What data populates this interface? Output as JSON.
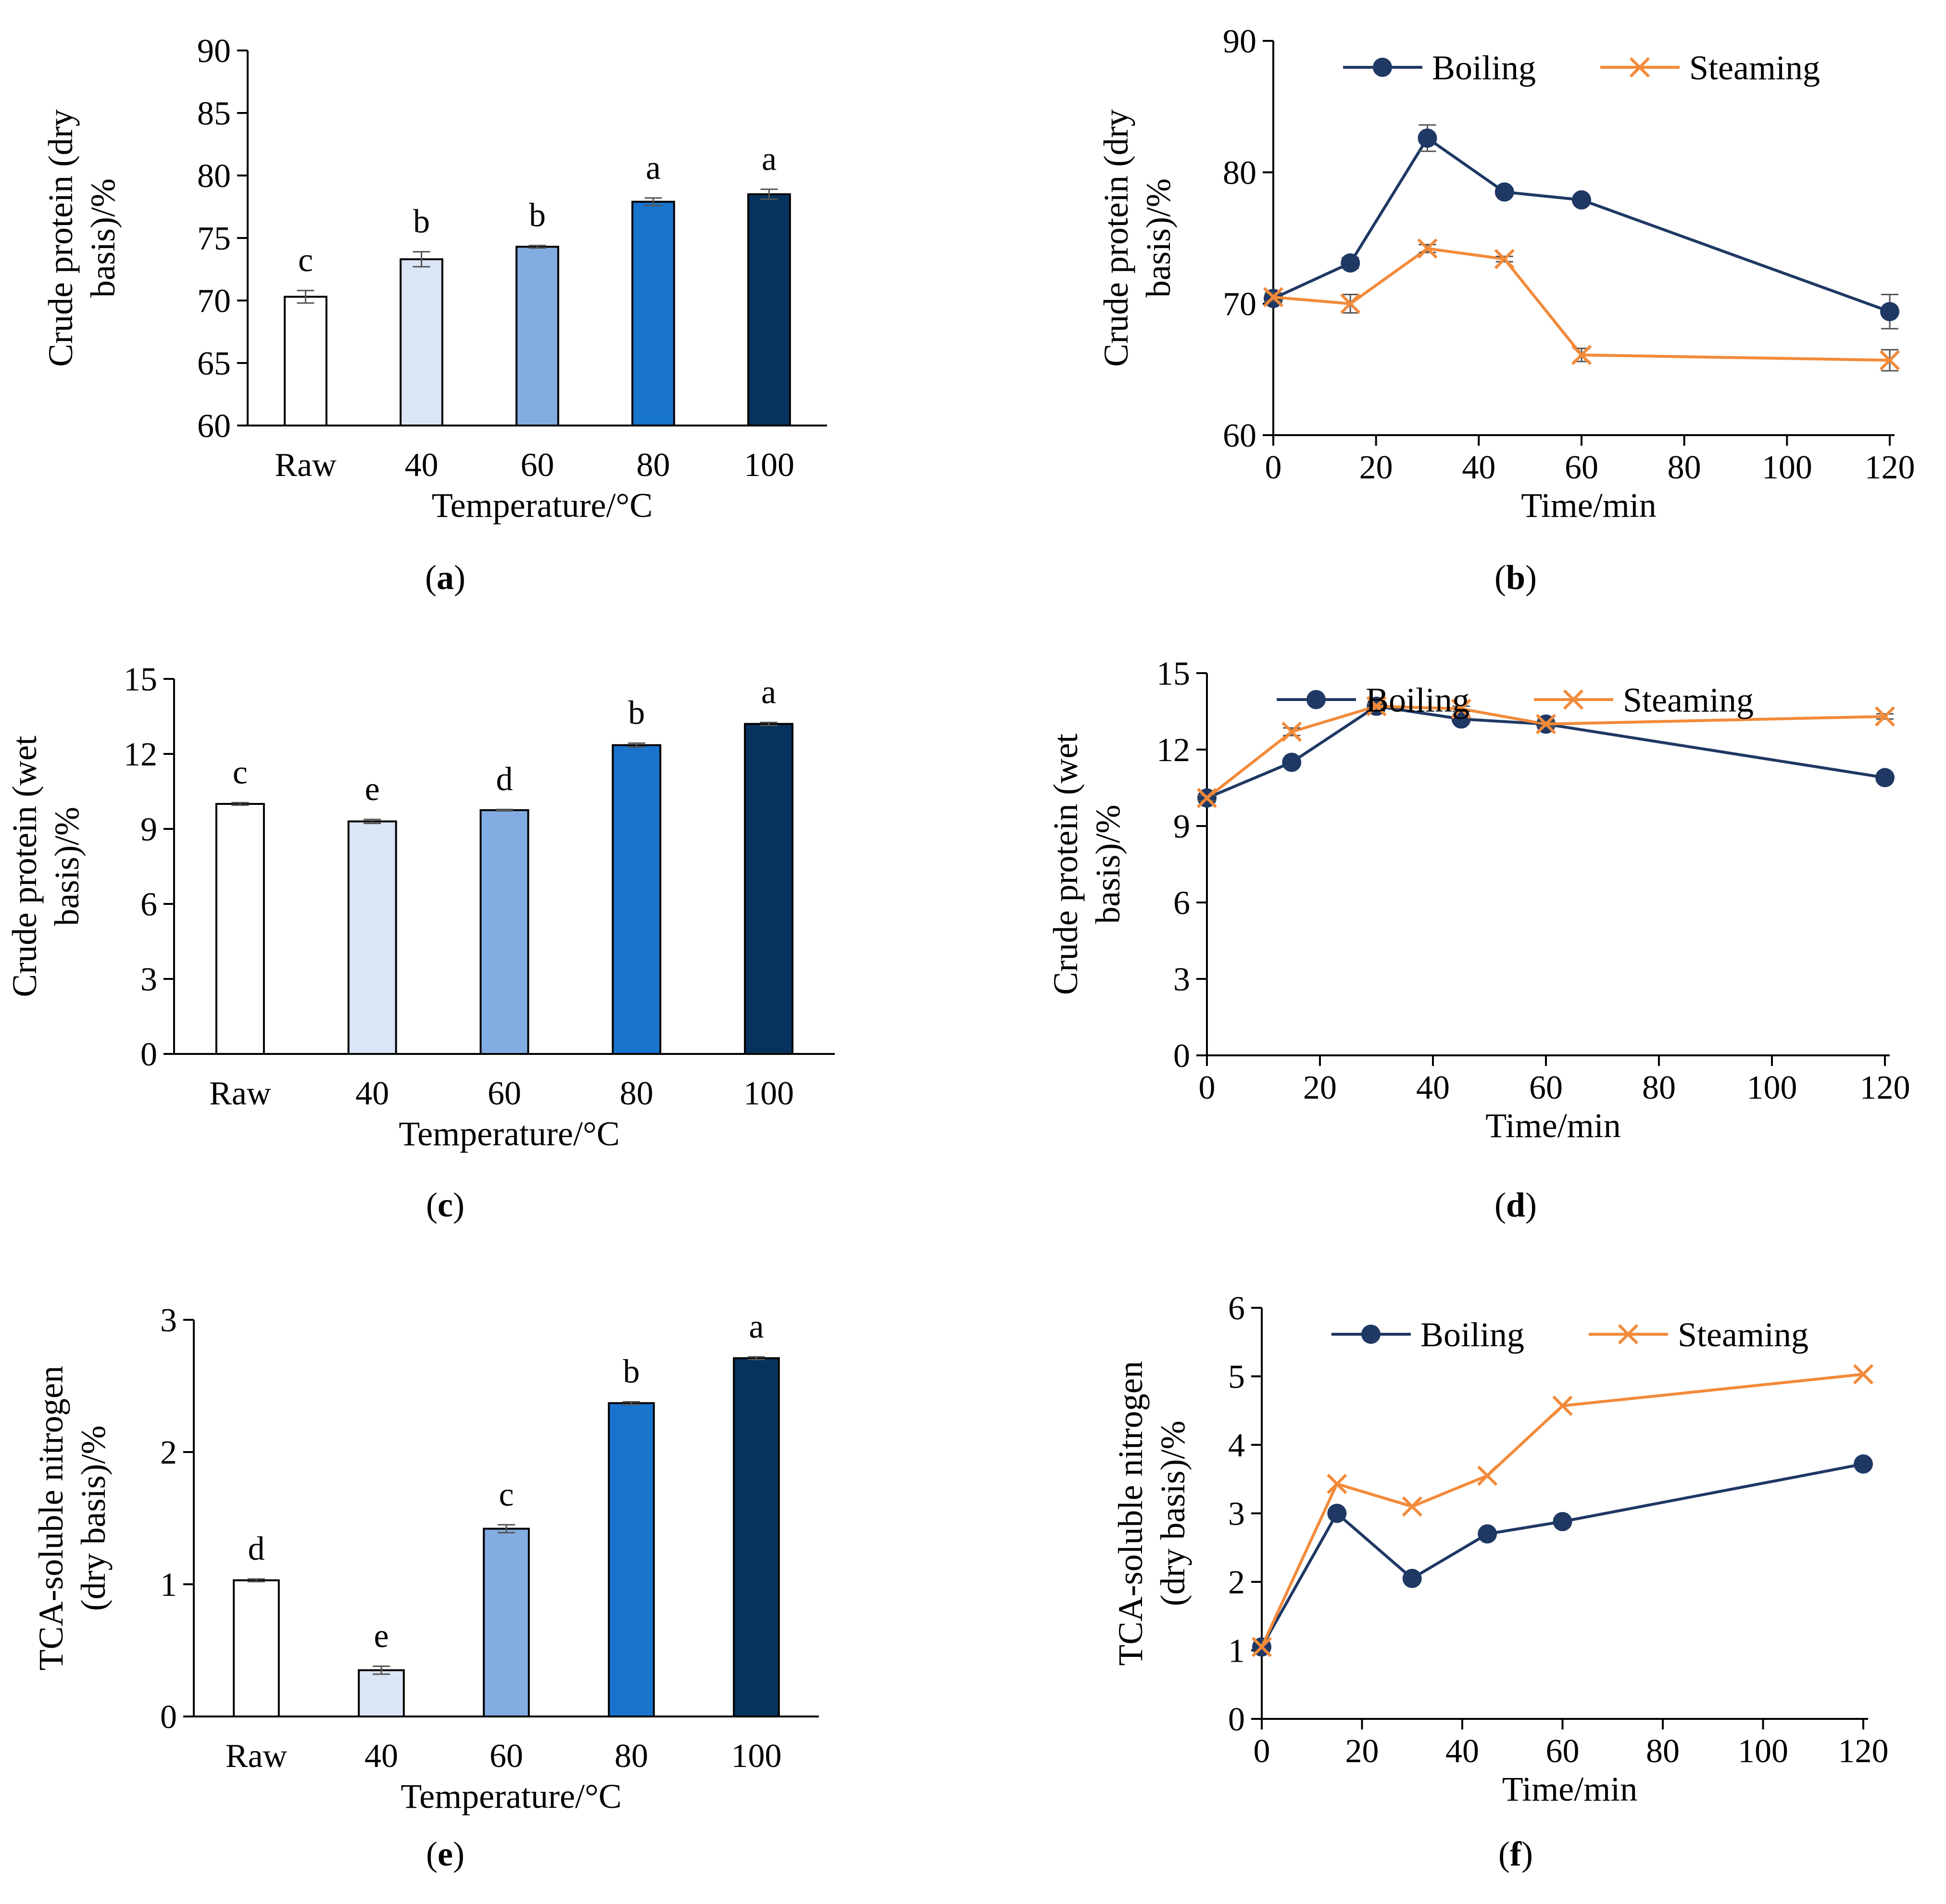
{
  "colors": {
    "boiling": "#1f3864",
    "steaming": "#f28a3a",
    "axis": "#000000",
    "bar_raw": "#ffffff",
    "bar_40": "#dae5f5",
    "bar_60": "#83ade2",
    "bar_80": "#1874cd",
    "bar_100": "#05335d"
  },
  "chart_data": [
    {
      "panel": "a",
      "panel_label": "a",
      "type": "bar",
      "categories": [
        "Raw",
        "40",
        "60",
        "80",
        "100"
      ],
      "values": [
        70.3,
        73.3,
        74.3,
        77.9,
        78.5
      ],
      "errors": [
        0.5,
        0.6,
        0.1,
        0.3,
        0.4
      ],
      "significance": [
        "c",
        "b",
        "b",
        "a",
        "a"
      ],
      "xlabel": "Temperature/°C",
      "ylabel": [
        "Crude protein (dry",
        "basis)/%"
      ],
      "ylim": [
        60,
        90
      ],
      "yticks": [
        "60",
        "65",
        "70",
        "75",
        "80",
        "85",
        "90"
      ]
    },
    {
      "panel": "b",
      "panel_label": "b",
      "type": "line",
      "x": [
        0,
        15,
        30,
        45,
        60,
        120
      ],
      "series": [
        {
          "name": "Boiling",
          "marker": "circle",
          "values": [
            70.4,
            73.1,
            82.6,
            78.5,
            77.9,
            69.4
          ],
          "errors": [
            0.4,
            0.4,
            1.0,
            0.3,
            0.2,
            1.3
          ]
        },
        {
          "name": "Steaming",
          "marker": "x",
          "values": [
            70.5,
            70.0,
            74.2,
            73.4,
            66.1,
            65.7
          ],
          "errors": [
            0.3,
            0.7,
            0.3,
            0.2,
            0.5,
            0.8
          ]
        }
      ],
      "xlabel": "Time/min",
      "ylabel": [
        "Crude protein (dry",
        "basis)/%"
      ],
      "xlim": [
        0,
        120
      ],
      "ylim": [
        60,
        90
      ],
      "xticks": [
        "0",
        "20",
        "40",
        "60",
        "80",
        "100",
        "120"
      ],
      "yticks": [
        "60",
        "70",
        "80",
        "90"
      ],
      "legend": "top"
    },
    {
      "panel": "c",
      "panel_label": "c",
      "type": "bar",
      "categories": [
        "Raw",
        "40",
        "60",
        "80",
        "100"
      ],
      "values": [
        10.0,
        9.3,
        9.75,
        12.35,
        13.2
      ],
      "errors": [
        0.05,
        0.08,
        0.03,
        0.08,
        0.06
      ],
      "significance": [
        "c",
        "e",
        "d",
        "b",
        "a"
      ],
      "xlabel": "Temperature/°C",
      "ylabel": [
        "Crude protein (wet",
        "basis)/%"
      ],
      "ylim": [
        0,
        15
      ],
      "yticks": [
        "0",
        "3",
        "6",
        "9",
        "12",
        "15"
      ]
    },
    {
      "panel": "d",
      "panel_label": "d",
      "type": "line",
      "x": [
        0,
        15,
        30,
        45,
        60,
        120
      ],
      "series": [
        {
          "name": "Boiling",
          "marker": "circle",
          "values": [
            10.1,
            11.5,
            13.7,
            13.2,
            13.0,
            10.9
          ],
          "errors": [
            0.1,
            0.1,
            0.2,
            0.1,
            0.1,
            0.1
          ]
        },
        {
          "name": "Steaming",
          "marker": "x",
          "values": [
            10.1,
            12.7,
            13.7,
            13.6,
            13.0,
            13.3
          ],
          "errors": [
            0.1,
            0.15,
            0.1,
            0.1,
            0.1,
            0.1
          ]
        }
      ],
      "xlabel": "Time/min",
      "ylabel": [
        "Crude protein (wet",
        "basis)/%"
      ],
      "xlim": [
        0,
        120
      ],
      "ylim": [
        0,
        15
      ],
      "xticks": [
        "0",
        "20",
        "40",
        "60",
        "80",
        "100",
        "120"
      ],
      "yticks": [
        "0",
        "3",
        "6",
        "9",
        "12",
        "15"
      ],
      "legend": "top"
    },
    {
      "panel": "e",
      "panel_label": "e",
      "type": "bar",
      "categories": [
        "Raw",
        "40",
        "60",
        "80",
        "100"
      ],
      "values": [
        1.03,
        0.35,
        1.42,
        2.37,
        2.71
      ],
      "errors": [
        0.01,
        0.03,
        0.03,
        0.01,
        0.01
      ],
      "significance": [
        "d",
        "e",
        "c",
        "b",
        "a"
      ],
      "xlabel": "Temperature/°C",
      "ylabel": [
        "TCA-soluble nitrogen",
        "(dry basis)/%"
      ],
      "ylim": [
        0,
        3
      ],
      "yticks": [
        "0",
        "1",
        "2",
        "3"
      ]
    },
    {
      "panel": "f",
      "panel_label": "f",
      "type": "line",
      "x": [
        0,
        15,
        30,
        45,
        60,
        120
      ],
      "series": [
        {
          "name": "Boiling",
          "marker": "circle",
          "values": [
            1.05,
            3.0,
            2.05,
            2.7,
            2.88,
            3.72
          ],
          "errors": [
            0,
            0,
            0,
            0,
            0,
            0
          ]
        },
        {
          "name": "Steaming",
          "marker": "x",
          "values": [
            1.05,
            3.43,
            3.1,
            3.55,
            4.57,
            5.03
          ],
          "errors": [
            0,
            0,
            0,
            0,
            0,
            0
          ]
        }
      ],
      "xlabel": "Time/min",
      "ylabel": [
        "TCA-soluble nitrogen",
        "(dry basis)/%"
      ],
      "xlim": [
        0,
        120
      ],
      "ylim": [
        0,
        6
      ],
      "xticks": [
        "0",
        "20",
        "40",
        "60",
        "80",
        "100",
        "120"
      ],
      "yticks": [
        "0",
        "1",
        "2",
        "3",
        "4",
        "5",
        "6"
      ],
      "legend": "top"
    }
  ]
}
